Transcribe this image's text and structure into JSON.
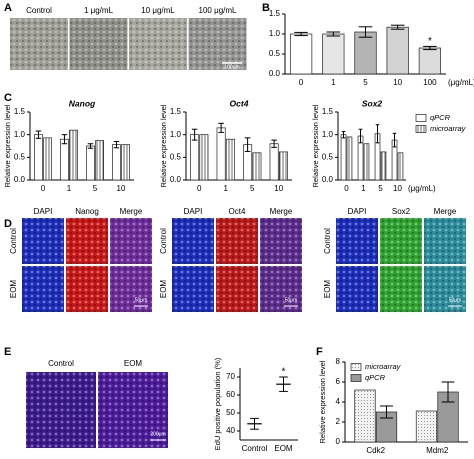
{
  "panel_labels": [
    "A",
    "B",
    "C",
    "D",
    "E",
    "F"
  ],
  "panel_a": {
    "labels": [
      "Control",
      "1 μg/mL",
      "10 μg/mL",
      "100 μg/mL"
    ],
    "scale_bar": "100μm"
  },
  "panel_d": {
    "groups": [
      {
        "columns": [
          "DAPI",
          "Nanog",
          "Merge"
        ]
      },
      {
        "columns": [
          "DAPI",
          "Oct4",
          "Merge"
        ]
      },
      {
        "columns": [
          "DAPI",
          "Sox2",
          "Merge"
        ]
      }
    ],
    "rows": [
      "Control",
      "EOM"
    ],
    "scale_bar": "50μm"
  },
  "panel_e": {
    "labels": [
      "Control",
      "EOM"
    ],
    "scale_bar": "200μm"
  },
  "chart_data": [
    {
      "type": "bar",
      "categories": [
        "0",
        "1",
        "5",
        "10",
        "100"
      ],
      "x_label": "(μg/mL)",
      "values": [
        1.0,
        1.0,
        1.05,
        1.17,
        0.65
      ],
      "errors": [
        0.04,
        0.05,
        0.13,
        0.05,
        0.04
      ],
      "colors": [
        "#ffffff",
        "#e6e6e6",
        "#b4b4b4",
        "#d2d2d2",
        "#dcdcdc"
      ],
      "ylim": [
        0,
        1.5
      ],
      "yticks": [
        {
          "value": 0,
          "label": "0.0"
        },
        {
          "value": 0.5,
          "label": "0.5"
        },
        {
          "value": 1,
          "label": "1.0"
        },
        {
          "value": 1.5,
          "label": "1.5"
        }
      ],
      "annotations": [
        {
          "text": "*",
          "category": "100"
        }
      ]
    },
    {
      "type": "bar",
      "title": "Nanog",
      "y_label": "Relative expression level",
      "categories": [
        "0",
        "1",
        "5",
        "10"
      ],
      "series": [
        {
          "color": "#ffffff",
          "values": [
            1.0,
            0.9,
            0.75,
            0.78
          ],
          "errors": [
            0.08,
            0.1,
            0.05,
            0.07
          ]
        },
        {
          "color": "#ffffff",
          "pattern": "hatch",
          "values": [
            0.93,
            1.1,
            0.87,
            0.78
          ]
        }
      ],
      "ylim": [
        0,
        1.5
      ],
      "yticks": [
        {
          "value": 0,
          "label": "0.0"
        },
        {
          "value": 0.5,
          "label": "0.5"
        },
        {
          "value": 1,
          "label": "1.0"
        },
        {
          "value": 1.5,
          "label": "1.5"
        }
      ]
    },
    {
      "type": "bar",
      "title": "Oct4",
      "y_label": "Relative expression level",
      "categories": [
        "0",
        "1",
        "5",
        "10"
      ],
      "series": [
        {
          "color": "#ffffff",
          "values": [
            1.0,
            1.15,
            0.78,
            0.8
          ],
          "errors": [
            0.12,
            0.1,
            0.15,
            0.08
          ]
        },
        {
          "color": "#ffffff",
          "pattern": "hatch",
          "values": [
            1.0,
            0.9,
            0.6,
            0.62
          ]
        }
      ],
      "ylim": [
        0,
        1.5
      ],
      "yticks": [
        {
          "value": 0,
          "label": "0.0"
        },
        {
          "value": 0.5,
          "label": "0.5"
        },
        {
          "value": 1,
          "label": "1.0"
        },
        {
          "value": 1.5,
          "label": "1.5"
        }
      ]
    },
    {
      "type": "bar",
      "title": "Sox2",
      "y_label": "Relative expression level",
      "categories": [
        "0",
        "1",
        "5",
        "10"
      ],
      "x_label": "(μg/mL)",
      "series": [
        {
          "name": "qPCR",
          "color": "#ffffff",
          "values": [
            1.0,
            0.97,
            1.02,
            0.88
          ],
          "errors": [
            0.07,
            0.15,
            0.2,
            0.15
          ]
        },
        {
          "name": "microarray",
          "color": "#ffffff",
          "pattern": "hatch",
          "values": [
            0.95,
            0.8,
            0.62,
            0.6
          ]
        }
      ],
      "legend": "right",
      "ylim": [
        0,
        1.5
      ],
      "yticks": [
        {
          "value": 0,
          "label": "0.0"
        },
        {
          "value": 0.5,
          "label": "0.5"
        },
        {
          "value": 1,
          "label": "1.0"
        },
        {
          "value": 1.5,
          "label": "1.5"
        }
      ]
    },
    {
      "type": "errorbar",
      "y_label": "EdU positive population (%)",
      "categories": [
        "Control",
        "EOM"
      ],
      "values": [
        44,
        66
      ],
      "errors": [
        3,
        4
      ],
      "ylim": [
        35,
        75
      ],
      "yticks": [
        40,
        50,
        60,
        70
      ],
      "annotations": [
        {
          "text": "*",
          "category": "EOM"
        }
      ]
    },
    {
      "type": "bar",
      "y_label": "Relative expression level",
      "categories": [
        "Cdk2",
        "Mdm2"
      ],
      "series": [
        {
          "name": "microarray",
          "color": "#eeeeee",
          "pattern": "dots",
          "values": [
            5.2,
            3.1
          ]
        },
        {
          "name": "qPCR",
          "color": "#9a9a9a",
          "values": [
            3.0,
            5.0
          ],
          "errors": [
            0.6,
            1.0
          ]
        }
      ],
      "legend": "upper left",
      "ylim": [
        0,
        8
      ],
      "yticks": [
        0,
        2,
        4,
        6,
        8
      ]
    }
  ]
}
